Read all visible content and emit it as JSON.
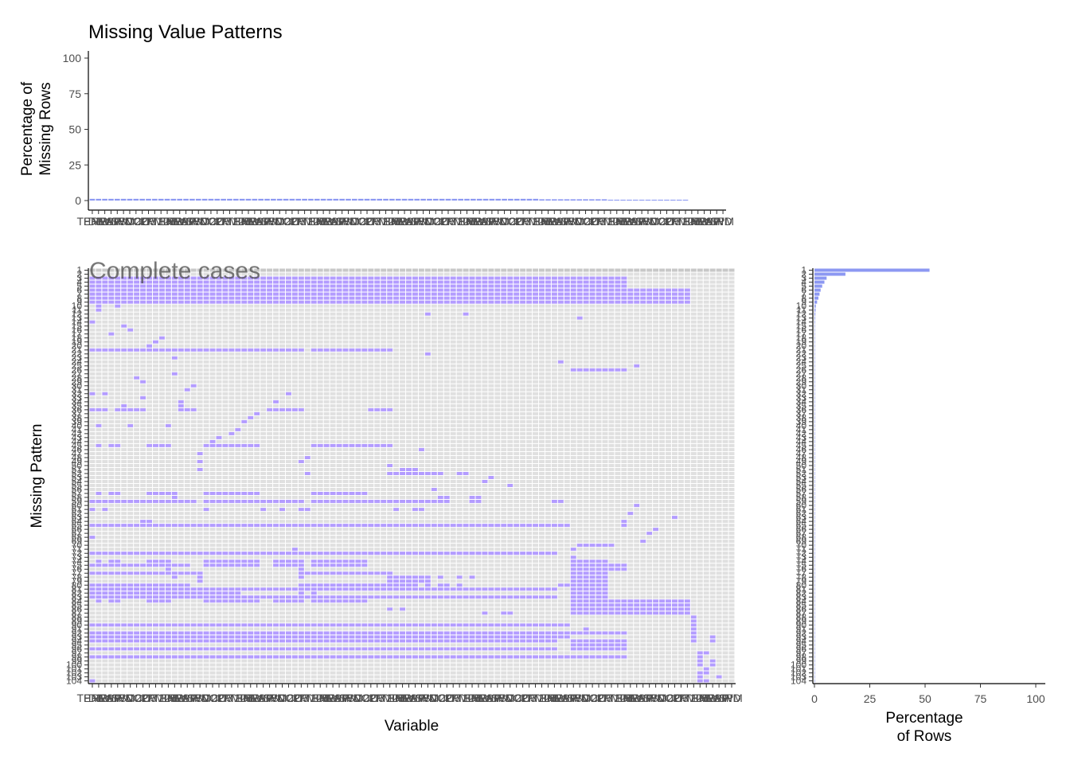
{
  "chart_data": [
    {
      "type": "bar",
      "panel": "top",
      "title": "Missing Value Patterns",
      "ylabel": "Percentage of\nMissing Rows",
      "ylim": [
        0,
        100
      ],
      "yticks": [
        0,
        25,
        50,
        75,
        100
      ],
      "n_variables": 102,
      "variable_labels": [
        "TEMP",
        "PRES",
        "DEWP",
        "RAIN",
        "WSPM",
        "WD",
        "SO2",
        "NO2",
        "CO",
        "O3",
        "PM10",
        "PM25"
      ],
      "values_pattern": [
        {
          "from": 0,
          "to": 71,
          "value": 1.2
        },
        {
          "from": 72,
          "to": 82,
          "value": 0.9
        },
        {
          "from": 83,
          "to": 95,
          "value": 0.6
        },
        {
          "from": 96,
          "to": 101,
          "value": 0.0
        }
      ],
      "color": "#8c98f2"
    },
    {
      "type": "heatmap",
      "panel": "main",
      "xlabel": "Variable",
      "ylabel": "Missing Pattern",
      "n_rows": 104,
      "n_cols": 102,
      "overlay_text": "Complete cases",
      "missing_color": "#b39cff",
      "present_color": "#e0e0e0",
      "grey_color": "#c8c8c8",
      "grey_rows": [
        1
      ],
      "spans": [
        [
          3,
          0,
          75
        ],
        [
          3,
          76,
          84
        ],
        [
          4,
          0,
          75
        ],
        [
          4,
          76,
          84
        ],
        [
          5,
          0,
          75
        ],
        [
          5,
          76,
          84
        ],
        [
          6,
          0,
          75
        ],
        [
          6,
          76,
          94
        ],
        [
          7,
          0,
          75
        ],
        [
          7,
          76,
          94
        ],
        [
          8,
          0,
          75
        ],
        [
          8,
          76,
          94
        ],
        [
          9,
          0,
          75
        ],
        [
          9,
          76,
          94
        ],
        [
          10,
          1,
          1
        ],
        [
          10,
          4,
          4
        ],
        [
          11,
          1,
          1
        ],
        [
          12,
          53,
          53
        ],
        [
          12,
          59,
          59
        ],
        [
          13,
          77,
          77
        ],
        [
          14,
          0,
          0
        ],
        [
          15,
          5,
          5
        ],
        [
          16,
          6,
          6
        ],
        [
          17,
          3,
          3
        ],
        [
          18,
          11,
          11
        ],
        [
          19,
          10,
          10
        ],
        [
          20,
          9,
          9
        ],
        [
          21,
          0,
          33
        ],
        [
          21,
          35,
          47
        ],
        [
          22,
          53,
          53
        ],
        [
          23,
          13,
          13
        ],
        [
          24,
          74,
          74
        ],
        [
          25,
          86,
          86
        ],
        [
          26,
          76,
          84
        ],
        [
          27,
          13,
          13
        ],
        [
          28,
          7,
          7
        ],
        [
          29,
          8,
          8
        ],
        [
          30,
          16,
          16
        ],
        [
          31,
          15,
          15
        ],
        [
          32,
          0,
          0
        ],
        [
          32,
          2,
          2
        ],
        [
          32,
          31,
          31
        ],
        [
          33,
          8,
          8
        ],
        [
          34,
          14,
          14
        ],
        [
          34,
          29,
          29
        ],
        [
          35,
          5,
          5
        ],
        [
          35,
          14,
          14
        ],
        [
          36,
          0,
          2
        ],
        [
          36,
          4,
          8
        ],
        [
          36,
          14,
          16
        ],
        [
          36,
          28,
          33
        ],
        [
          36,
          44,
          47
        ],
        [
          37,
          26,
          26
        ],
        [
          38,
          25,
          25
        ],
        [
          39,
          24,
          24
        ],
        [
          40,
          1,
          1
        ],
        [
          40,
          6,
          6
        ],
        [
          40,
          12,
          12
        ],
        [
          41,
          23,
          23
        ],
        [
          42,
          22,
          22
        ],
        [
          43,
          20,
          20
        ],
        [
          44,
          19,
          19
        ],
        [
          45,
          1,
          1
        ],
        [
          45,
          3,
          4
        ],
        [
          45,
          9,
          12
        ],
        [
          45,
          18,
          26
        ],
        [
          45,
          35,
          47
        ],
        [
          46,
          52,
          52
        ],
        [
          47,
          17,
          17
        ],
        [
          48,
          34,
          34
        ],
        [
          49,
          17,
          17
        ],
        [
          49,
          33,
          33
        ],
        [
          50,
          47,
          47
        ],
        [
          51,
          49,
          51
        ],
        [
          51,
          17,
          17
        ],
        [
          52,
          47,
          55
        ],
        [
          52,
          58,
          59
        ],
        [
          52,
          34,
          34
        ],
        [
          53,
          63,
          63
        ],
        [
          54,
          62,
          62
        ],
        [
          55,
          66,
          66
        ],
        [
          56,
          54,
          54
        ],
        [
          57,
          1,
          1
        ],
        [
          57,
          3,
          4
        ],
        [
          57,
          9,
          13
        ],
        [
          57,
          18,
          26
        ],
        [
          57,
          35,
          43
        ],
        [
          58,
          13,
          13
        ],
        [
          58,
          55,
          56
        ],
        [
          58,
          60,
          61
        ],
        [
          59,
          0,
          16
        ],
        [
          59,
          18,
          33
        ],
        [
          59,
          35,
          55
        ],
        [
          59,
          55,
          56
        ],
        [
          59,
          60,
          61
        ],
        [
          59,
          73,
          74
        ],
        [
          60,
          86,
          86
        ],
        [
          61,
          0,
          0
        ],
        [
          61,
          2,
          2
        ],
        [
          61,
          18,
          18
        ],
        [
          61,
          27,
          27
        ],
        [
          61,
          30,
          30
        ],
        [
          61,
          33,
          34
        ],
        [
          61,
          48,
          48
        ],
        [
          61,
          51,
          52
        ],
        [
          62,
          85,
          85
        ],
        [
          63,
          92,
          92
        ],
        [
          64,
          8,
          9
        ],
        [
          64,
          84,
          84
        ],
        [
          65,
          0,
          75
        ],
        [
          65,
          84,
          84
        ],
        [
          66,
          89,
          89
        ],
        [
          67,
          88,
          88
        ],
        [
          68,
          0,
          0
        ],
        [
          69,
          87,
          87
        ],
        [
          70,
          77,
          82
        ],
        [
          71,
          32,
          32
        ],
        [
          71,
          76,
          76
        ],
        [
          72,
          18,
          18
        ],
        [
          72,
          0,
          73
        ],
        [
          73,
          76,
          76
        ],
        [
          74,
          1,
          1
        ],
        [
          74,
          3,
          4
        ],
        [
          74,
          9,
          12
        ],
        [
          74,
          18,
          26
        ],
        [
          74,
          29,
          33
        ],
        [
          74,
          35,
          43
        ],
        [
          74,
          76,
          81
        ],
        [
          75,
          0,
          15
        ],
        [
          75,
          18,
          26
        ],
        [
          75,
          29,
          33
        ],
        [
          75,
          35,
          43
        ],
        [
          75,
          76,
          84
        ],
        [
          76,
          12,
          12
        ],
        [
          76,
          33,
          33
        ],
        [
          76,
          76,
          84
        ],
        [
          77,
          0,
          15
        ],
        [
          77,
          14,
          14
        ],
        [
          77,
          16,
          17
        ],
        [
          77,
          33,
          47
        ],
        [
          77,
          76,
          81
        ],
        [
          78,
          13,
          13
        ],
        [
          78,
          17,
          17
        ],
        [
          78,
          33,
          33
        ],
        [
          78,
          47,
          53
        ],
        [
          78,
          55,
          55
        ],
        [
          78,
          58,
          58
        ],
        [
          78,
          60,
          60
        ],
        [
          78,
          76,
          81
        ],
        [
          79,
          17,
          17
        ],
        [
          79,
          47,
          53
        ],
        [
          79,
          76,
          81
        ],
        [
          80,
          0,
          15
        ],
        [
          80,
          33,
          51
        ],
        [
          80,
          53,
          53
        ],
        [
          80,
          55,
          56
        ],
        [
          80,
          58,
          58
        ],
        [
          80,
          74,
          75
        ],
        [
          80,
          76,
          81
        ],
        [
          81,
          0,
          73
        ],
        [
          81,
          76,
          81
        ],
        [
          82,
          0,
          23
        ],
        [
          82,
          33,
          33
        ],
        [
          82,
          35,
          35
        ],
        [
          82,
          76,
          81
        ],
        [
          83,
          0,
          73
        ],
        [
          83,
          76,
          81
        ],
        [
          84,
          1,
          1
        ],
        [
          84,
          3,
          4
        ],
        [
          84,
          9,
          12
        ],
        [
          84,
          18,
          26
        ],
        [
          84,
          29,
          33
        ],
        [
          84,
          35,
          43
        ],
        [
          84,
          76,
          94
        ],
        [
          85,
          76,
          94
        ],
        [
          86,
          47,
          47
        ],
        [
          86,
          49,
          49
        ],
        [
          86,
          76,
          94
        ],
        [
          87,
          62,
          62
        ],
        [
          87,
          65,
          66
        ],
        [
          87,
          76,
          94
        ],
        [
          88,
          95,
          95
        ],
        [
          89,
          95,
          95
        ],
        [
          90,
          22,
          22
        ],
        [
          90,
          0,
          75
        ],
        [
          90,
          95,
          95
        ],
        [
          91,
          78,
          78
        ],
        [
          91,
          95,
          95
        ],
        [
          92,
          0,
          75
        ],
        [
          92,
          76,
          84
        ],
        [
          92,
          95,
          95
        ],
        [
          93,
          15,
          15
        ],
        [
          93,
          0,
          75
        ],
        [
          93,
          95,
          95
        ],
        [
          93,
          98,
          98
        ],
        [
          94,
          0,
          73
        ],
        [
          94,
          57,
          57
        ],
        [
          94,
          76,
          84
        ],
        [
          94,
          95,
          95
        ],
        [
          94,
          98,
          98
        ],
        [
          95,
          76,
          84
        ],
        [
          96,
          0,
          73
        ],
        [
          96,
          76,
          84
        ],
        [
          97,
          96,
          97
        ],
        [
          98,
          0,
          75
        ],
        [
          98,
          76,
          84
        ],
        [
          98,
          96,
          96
        ],
        [
          99,
          96,
          96
        ],
        [
          99,
          98,
          98
        ],
        [
          100,
          96,
          96
        ],
        [
          100,
          98,
          98
        ],
        [
          101,
          97,
          97
        ],
        [
          102,
          96,
          97
        ],
        [
          103,
          96,
          96
        ],
        [
          103,
          99,
          99
        ],
        [
          104,
          0,
          0
        ],
        [
          104,
          96,
          97
        ]
      ]
    },
    {
      "type": "bar",
      "panel": "right",
      "orientation": "horizontal",
      "xlabel": "Percentage\nof Rows",
      "xlim": [
        0,
        100
      ],
      "xticks": [
        0,
        25,
        50,
        75,
        100
      ],
      "n_rows": 104,
      "values": [
        52,
        14,
        5.5,
        4.5,
        3.5,
        2.8,
        2.3,
        1.8,
        1.2,
        0.6,
        0.5,
        0.4,
        0.3,
        0.25,
        0.2,
        0.2,
        0.15,
        0.15,
        0.1,
        0.1
      ],
      "min_value": 0.1,
      "color": "#8c98f2"
    }
  ]
}
